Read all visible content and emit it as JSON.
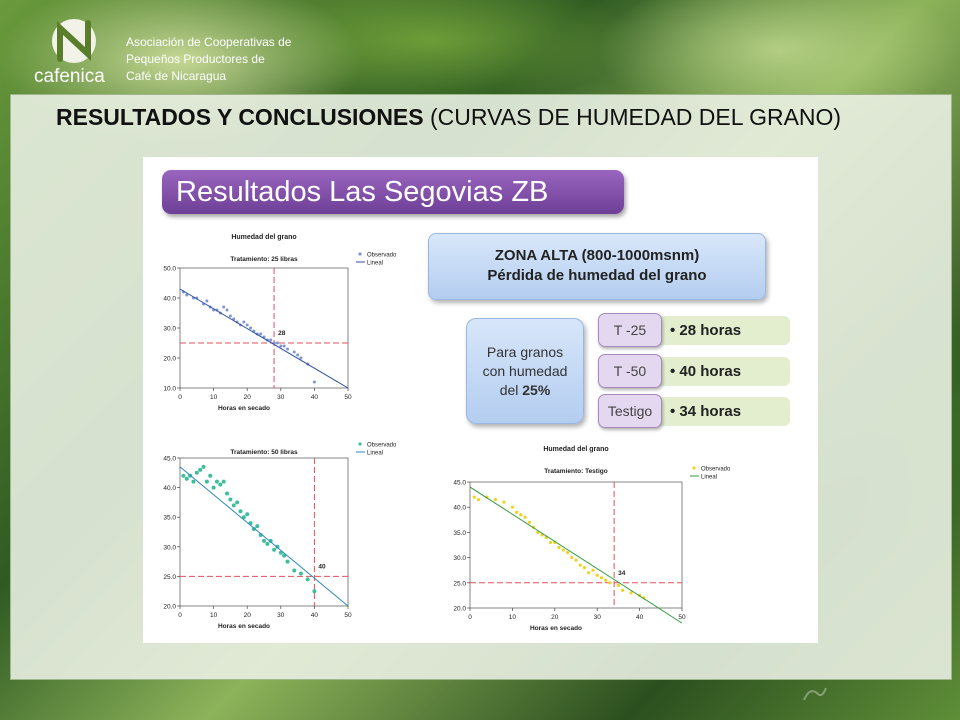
{
  "header": {
    "brand": "cafenica",
    "org_lines": [
      "Asociación de Cooperativas de",
      "Pequeños Productores de",
      "Café de Nicaragua"
    ],
    "title_bold": "RESULTADOS  Y  CONCLUSIONES",
    "title_sub": " (CURVAS DE HUMEDAD DEL GRANO)"
  },
  "figure": {
    "banner": "Resultados Las Segovias ZB",
    "zona_line1": "ZONA ALTA  (800-1000msnm)",
    "zona_line2": "Pérdida de humedad del grano",
    "para_line1": "Para granos",
    "para_line2": "con humedad",
    "para_line3_pre": "del ",
    "para_line3_bold": "25%",
    "rows": [
      {
        "tag": "T -25",
        "value": "• 28 horas"
      },
      {
        "tag": "T -50",
        "value": "• 40 horas"
      },
      {
        "tag": "Testigo",
        "value": "• 34 horas"
      }
    ]
  },
  "colors": {
    "banner": "#7b4aa3",
    "chart1_points": "#7f95d6",
    "chart2_points": "#3cbf9a",
    "chart3_points": "#f2d21f",
    "line1": "#2e4fa0",
    "line2": "#2e86c0",
    "line3": "#2f9a3a",
    "ref": "#e0505a"
  },
  "chart_data": [
    {
      "type": "scatter",
      "title": "Humedad del grano",
      "subtitle": "Tratamiento: 25 libras",
      "xlabel": "Horas en secado",
      "ylabel": "",
      "xlim": [
        0,
        50
      ],
      "ylim": [
        10,
        50
      ],
      "xticks": [
        "0",
        "10",
        "20",
        "30",
        "40",
        "50"
      ],
      "yticks": [
        "10.0",
        "20.0",
        "30.0",
        "40.0",
        "50.0"
      ],
      "legend": [
        "Observado",
        "Lineal"
      ],
      "annotation": "28",
      "ref_x": 28,
      "ref_y": 25,
      "fit": [
        [
          0,
          43
        ],
        [
          50,
          10
        ]
      ],
      "points": [
        [
          1,
          42
        ],
        [
          2,
          41
        ],
        [
          4,
          40
        ],
        [
          5,
          40
        ],
        [
          7,
          38
        ],
        [
          8,
          39
        ],
        [
          9,
          37
        ],
        [
          10,
          36
        ],
        [
          11,
          36
        ],
        [
          12,
          35
        ],
        [
          13,
          37
        ],
        [
          14,
          36
        ],
        [
          15,
          34
        ],
        [
          16,
          33
        ],
        [
          17,
          32
        ],
        [
          18,
          31
        ],
        [
          19,
          32
        ],
        [
          20,
          31
        ],
        [
          21,
          30
        ],
        [
          22,
          29
        ],
        [
          23,
          28
        ],
        [
          24,
          28
        ],
        [
          25,
          27
        ],
        [
          26,
          26
        ],
        [
          27,
          26
        ],
        [
          28,
          25
        ],
        [
          29,
          25
        ],
        [
          30,
          24
        ],
        [
          31,
          24
        ],
        [
          32,
          23
        ],
        [
          34,
          22
        ],
        [
          35,
          21
        ],
        [
          36,
          20
        ],
        [
          38,
          18
        ],
        [
          40,
          12
        ]
      ]
    },
    {
      "type": "scatter",
      "title": "Humedad del grano",
      "subtitle": "Tratamiento: 50 libras",
      "xlabel": "Horas en secado",
      "ylabel": "",
      "xlim": [
        0,
        50
      ],
      "ylim": [
        20,
        45
      ],
      "xticks": [
        "0",
        "10",
        "20",
        "30",
        "40",
        "50"
      ],
      "yticks": [
        "20.0",
        "25.0",
        "30.0",
        "35.0",
        "40.0",
        "45.0"
      ],
      "legend": [
        "Observado",
        "Lineal"
      ],
      "annotation": "40",
      "ref_x": 40,
      "ref_y": 25,
      "fit": [
        [
          0,
          43.5
        ],
        [
          50,
          20
        ]
      ],
      "points": [
        [
          1,
          42
        ],
        [
          2,
          41.5
        ],
        [
          3,
          42
        ],
        [
          4,
          41
        ],
        [
          5,
          42.5
        ],
        [
          6,
          43
        ],
        [
          7,
          43.5
        ],
        [
          8,
          41
        ],
        [
          9,
          42
        ],
        [
          10,
          40
        ],
        [
          11,
          41
        ],
        [
          12,
          40.5
        ],
        [
          13,
          41
        ],
        [
          14,
          39
        ],
        [
          15,
          38
        ],
        [
          16,
          37
        ],
        [
          17,
          37.5
        ],
        [
          18,
          36
        ],
        [
          19,
          35
        ],
        [
          20,
          35.5
        ],
        [
          21,
          34
        ],
        [
          22,
          33
        ],
        [
          23,
          33.5
        ],
        [
          24,
          32
        ],
        [
          25,
          31
        ],
        [
          26,
          30.5
        ],
        [
          27,
          31
        ],
        [
          28,
          29.5
        ],
        [
          29,
          30
        ],
        [
          30,
          29
        ],
        [
          31,
          28.5
        ],
        [
          32,
          27.5
        ],
        [
          34,
          26
        ],
        [
          36,
          25.5
        ],
        [
          38,
          24.5
        ],
        [
          40,
          22.5
        ]
      ]
    },
    {
      "type": "scatter",
      "title": "Humedad del grano",
      "subtitle": "Tratamiento: Testigo",
      "xlabel": "Horas en secado",
      "ylabel": "",
      "xlim": [
        0,
        50
      ],
      "ylim": [
        20,
        45
      ],
      "xticks": [
        "0",
        "10",
        "20",
        "30",
        "40",
        "50"
      ],
      "yticks": [
        "20.0",
        "25.0",
        "30.0",
        "35.0",
        "40.0",
        "45.0"
      ],
      "legend": [
        "Observado",
        "Lineal"
      ],
      "annotation": "34",
      "ref_x": 34,
      "ref_y": 25,
      "fit": [
        [
          0,
          44
        ],
        [
          50,
          17
        ]
      ],
      "points": [
        [
          1,
          42
        ],
        [
          2,
          41.5
        ],
        [
          4,
          42
        ],
        [
          6,
          41.5
        ],
        [
          8,
          41
        ],
        [
          10,
          40
        ],
        [
          11,
          39
        ],
        [
          12,
          38.5
        ],
        [
          13,
          38
        ],
        [
          14,
          37
        ],
        [
          15,
          36
        ],
        [
          16,
          35
        ],
        [
          17,
          34.5
        ],
        [
          18,
          34
        ],
        [
          19,
          33
        ],
        [
          20,
          33
        ],
        [
          21,
          32
        ],
        [
          22,
          31.5
        ],
        [
          23,
          31
        ],
        [
          24,
          30
        ],
        [
          25,
          29.5
        ],
        [
          26,
          28.5
        ],
        [
          27,
          28
        ],
        [
          28,
          27
        ],
        [
          29,
          27.5
        ],
        [
          30,
          26.5
        ],
        [
          31,
          26
        ],
        [
          32,
          25.5
        ],
        [
          33,
          25
        ],
        [
          35,
          24.5
        ],
        [
          36,
          23.5
        ],
        [
          38,
          23
        ],
        [
          40,
          22.5
        ],
        [
          41,
          22
        ]
      ]
    }
  ]
}
